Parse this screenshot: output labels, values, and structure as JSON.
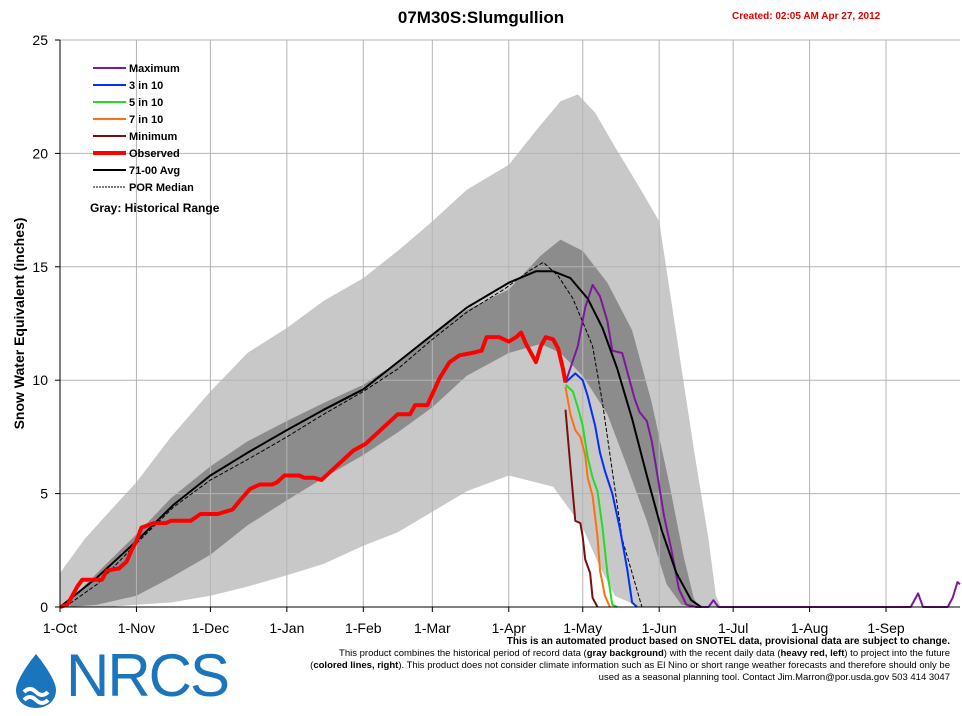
{
  "header": {
    "title": "07M30S:Slumgullion",
    "created": "Created: 02:05 AM Apr 27, 2012"
  },
  "disclaimer": {
    "heading": "This is an automated product based on SNOTEL data, provisional data are subject to change.",
    "body_1": "This product combines the historical period of record data (",
    "body_2": "gray background",
    "body_3": ") with the recent daily data (",
    "body_4": "heavy red, left",
    "body_5": ") to project into the future (",
    "body_6": "colored lines, right",
    "body_7": "). This product does not consider climate information such as El Nino or short range weather forecasts and therefore should only be used as a seasonal planning tool. Contact Jim.Marron@por.usda.gov 503 414 3047"
  },
  "logo": {
    "text": "NRCS"
  },
  "chart_data": {
    "type": "line",
    "title": "07M30S:Slumgullion",
    "ylabel": "Snow Water Equivalent (inches)",
    "xlabel": "",
    "ylim": [
      0,
      25
    ],
    "yticks": [
      0,
      5,
      10,
      15,
      20,
      25
    ],
    "x_unit": "days since 1-Oct",
    "xlim": [
      0,
      365
    ],
    "xticks": [
      {
        "label": "1-Oct",
        "day": 0
      },
      {
        "label": "1-Nov",
        "day": 31
      },
      {
        "label": "1-Dec",
        "day": 61
      },
      {
        "label": "1-Jan",
        "day": 92
      },
      {
        "label": "1-Feb",
        "day": 123
      },
      {
        "label": "1-Mar",
        "day": 151
      },
      {
        "label": "1-Apr",
        "day": 182
      },
      {
        "label": "1-May",
        "day": 212
      },
      {
        "label": "1-Jun",
        "day": 243
      },
      {
        "label": "1-Jul",
        "day": 273
      },
      {
        "label": "1-Aug",
        "day": 304
      },
      {
        "label": "1-Sep",
        "day": 335
      }
    ],
    "grid": true,
    "legend_position": "top-left",
    "legend": [
      {
        "name": "Maximum",
        "color": "#7a1a9a",
        "style": "solid",
        "width": 2
      },
      {
        "name": "3 in 10",
        "color": "#0030ff",
        "style": "solid",
        "width": 2
      },
      {
        "name": "5 in 10",
        "color": "#22dd22",
        "style": "solid",
        "width": 2
      },
      {
        "name": "7 in 10",
        "color": "#ff7010",
        "style": "solid",
        "width": 2
      },
      {
        "name": "Minimum",
        "color": "#7a1010",
        "style": "solid",
        "width": 2
      },
      {
        "name": "Observed",
        "color": "#ff0000",
        "style": "solid",
        "width": 4
      },
      {
        "name": "71-00 Avg",
        "color": "#000000",
        "style": "solid",
        "width": 2
      },
      {
        "name": "POR Median",
        "color": "#000000",
        "style": "dashed",
        "width": 1
      }
    ],
    "legend_note": "Gray: Historical Range",
    "bands": {
      "outer": {
        "color": "#c8c8c8",
        "upper": [
          [
            0,
            1.5
          ],
          [
            10,
            3
          ],
          [
            20,
            4.2
          ],
          [
            31,
            5.5
          ],
          [
            45,
            7.5
          ],
          [
            61,
            9.5
          ],
          [
            76,
            11.2
          ],
          [
            92,
            12.3
          ],
          [
            107,
            13.5
          ],
          [
            123,
            14.5
          ],
          [
            137,
            15.7
          ],
          [
            151,
            17
          ],
          [
            165,
            18.4
          ],
          [
            182,
            19.5
          ],
          [
            193,
            21
          ],
          [
            203,
            22.3
          ],
          [
            210,
            22.6
          ],
          [
            217,
            21.8
          ],
          [
            225,
            20.3
          ],
          [
            235,
            18.5
          ],
          [
            243,
            17
          ],
          [
            250,
            12
          ],
          [
            257,
            7
          ],
          [
            263,
            3
          ],
          [
            266,
            0.5
          ],
          [
            268,
            0
          ]
        ],
        "lower": [
          [
            268,
            0
          ],
          [
            255,
            0
          ],
          [
            245,
            0
          ],
          [
            235,
            0
          ],
          [
            225,
            0.5
          ],
          [
            218,
            2
          ],
          [
            212,
            3.5
          ],
          [
            200,
            5.3
          ],
          [
            182,
            5.8
          ],
          [
            165,
            5.1
          ],
          [
            151,
            4.2
          ],
          [
            137,
            3.3
          ],
          [
            123,
            2.7
          ],
          [
            107,
            1.9
          ],
          [
            92,
            1.4
          ],
          [
            76,
            0.9
          ],
          [
            61,
            0.5
          ],
          [
            45,
            0.2
          ],
          [
            31,
            0.1
          ],
          [
            20,
            0
          ],
          [
            0,
            0
          ]
        ]
      },
      "inner": {
        "color": "#8c8c8c",
        "upper": [
          [
            4,
            0.3
          ],
          [
            15,
            1.5
          ],
          [
            31,
            3.2
          ],
          [
            45,
            4.8
          ],
          [
            61,
            6.2
          ],
          [
            76,
            7.3
          ],
          [
            92,
            8.2
          ],
          [
            107,
            9
          ],
          [
            123,
            9.8
          ],
          [
            137,
            10.8
          ],
          [
            151,
            12
          ],
          [
            165,
            13.1
          ],
          [
            182,
            14
          ],
          [
            195,
            15.5
          ],
          [
            203,
            16.2
          ],
          [
            212,
            15.7
          ],
          [
            222,
            14.3
          ],
          [
            232,
            12.2
          ],
          [
            240,
            9
          ],
          [
            247,
            5.5
          ],
          [
            253,
            2.2
          ],
          [
            257,
            0.4
          ],
          [
            259,
            0
          ]
        ],
        "lower": [
          [
            259,
            0
          ],
          [
            252,
            0.1
          ],
          [
            246,
            1
          ],
          [
            238,
            3.8
          ],
          [
            230,
            6.2
          ],
          [
            222,
            8.5
          ],
          [
            212,
            10.2
          ],
          [
            203,
            11.2
          ],
          [
            195,
            11.6
          ],
          [
            182,
            11.2
          ],
          [
            165,
            10.2
          ],
          [
            151,
            8.8
          ],
          [
            137,
            7.7
          ],
          [
            123,
            6.7
          ],
          [
            107,
            5.7
          ],
          [
            92,
            4.7
          ],
          [
            76,
            3.6
          ],
          [
            61,
            2.3
          ],
          [
            45,
            1.3
          ],
          [
            31,
            0.5
          ],
          [
            15,
            0.1
          ],
          [
            4,
            0
          ]
        ]
      }
    },
    "series": [
      {
        "name": "Observed",
        "color": "#ff0000",
        "width": 4,
        "dash": "",
        "points": [
          [
            0,
            0
          ],
          [
            3,
            0.1
          ],
          [
            7,
            0.9
          ],
          [
            9,
            1.2
          ],
          [
            17,
            1.2
          ],
          [
            19,
            1.6
          ],
          [
            24,
            1.7
          ],
          [
            27,
            2
          ],
          [
            29,
            2.5
          ],
          [
            31,
            2.9
          ],
          [
            33,
            3.5
          ],
          [
            38,
            3.7
          ],
          [
            43,
            3.7
          ],
          [
            45,
            3.8
          ],
          [
            53,
            3.8
          ],
          [
            57,
            4.1
          ],
          [
            64,
            4.1
          ],
          [
            70,
            4.3
          ],
          [
            73,
            4.7
          ],
          [
            77,
            5.2
          ],
          [
            81,
            5.4
          ],
          [
            86,
            5.4
          ],
          [
            88,
            5.5
          ],
          [
            91,
            5.8
          ],
          [
            97,
            5.8
          ],
          [
            99,
            5.7
          ],
          [
            103,
            5.7
          ],
          [
            106,
            5.6
          ],
          [
            109,
            5.9
          ],
          [
            114,
            6.4
          ],
          [
            119,
            6.9
          ],
          [
            124,
            7.2
          ],
          [
            128,
            7.6
          ],
          [
            133,
            8.1
          ],
          [
            137,
            8.5
          ],
          [
            142,
            8.5
          ],
          [
            144,
            8.9
          ],
          [
            149,
            8.9
          ],
          [
            154,
            10.1
          ],
          [
            158,
            10.8
          ],
          [
            162,
            11.1
          ],
          [
            167,
            11.2
          ],
          [
            171,
            11.3
          ],
          [
            173,
            11.9
          ],
          [
            178,
            11.9
          ],
          [
            182,
            11.7
          ],
          [
            185,
            11.9
          ],
          [
            187,
            12.1
          ],
          [
            189,
            11.6
          ],
          [
            191,
            11.2
          ],
          [
            193,
            10.8
          ],
          [
            195,
            11.5
          ],
          [
            197,
            11.9
          ],
          [
            200,
            11.8
          ],
          [
            202,
            11.4
          ],
          [
            204,
            10.5
          ],
          [
            205,
            9.9
          ]
        ]
      },
      {
        "name": "71-00 Avg",
        "color": "#000000",
        "width": 2,
        "dash": "",
        "points": [
          [
            0,
            0
          ],
          [
            15,
            1.3
          ],
          [
            31,
            2.9
          ],
          [
            46,
            4.5
          ],
          [
            61,
            5.8
          ],
          [
            76,
            6.8
          ],
          [
            92,
            7.8
          ],
          [
            107,
            8.7
          ],
          [
            123,
            9.6
          ],
          [
            137,
            10.8
          ],
          [
            151,
            12
          ],
          [
            165,
            13.2
          ],
          [
            182,
            14.3
          ],
          [
            193,
            14.8
          ],
          [
            200,
            14.8
          ],
          [
            207,
            14.5
          ],
          [
            214,
            13.6
          ],
          [
            220,
            12.3
          ],
          [
            226,
            10.5
          ],
          [
            232,
            8.3
          ],
          [
            238,
            5.8
          ],
          [
            244,
            3.4
          ],
          [
            250,
            1.5
          ],
          [
            256,
            0.3
          ],
          [
            260,
            0
          ]
        ]
      },
      {
        "name": "POR Median",
        "color": "#000000",
        "width": 1,
        "dash": "4,2",
        "points": [
          [
            2,
            0
          ],
          [
            15,
            1
          ],
          [
            31,
            2.8
          ],
          [
            46,
            4.4
          ],
          [
            61,
            5.6
          ],
          [
            76,
            6.5
          ],
          [
            92,
            7.5
          ],
          [
            107,
            8.5
          ],
          [
            123,
            9.5
          ],
          [
            137,
            10.5
          ],
          [
            151,
            11.8
          ],
          [
            165,
            13
          ],
          [
            180,
            14
          ],
          [
            190,
            14.8
          ],
          [
            196,
            15.2
          ],
          [
            202,
            14.6
          ],
          [
            208,
            13.6
          ],
          [
            213,
            12.3
          ],
          [
            216,
            11.5
          ],
          [
            220,
            9
          ],
          [
            224,
            6
          ],
          [
            228,
            3
          ],
          [
            232,
            1.5
          ],
          [
            236,
            0
          ]
        ]
      },
      {
        "name": "Maximum",
        "color": "#7a1a9a",
        "width": 2,
        "dash": "",
        "points": [
          [
            205,
            9.9
          ],
          [
            210,
            11.5
          ],
          [
            213,
            13.2
          ],
          [
            216,
            14.2
          ],
          [
            219,
            13.7
          ],
          [
            222,
            12.6
          ],
          [
            224,
            11.3
          ],
          [
            228,
            11.2
          ],
          [
            231,
            10
          ],
          [
            233,
            9.2
          ],
          [
            235,
            8.6
          ],
          [
            238,
            8.2
          ],
          [
            240,
            7.3
          ],
          [
            242,
            6
          ],
          [
            245,
            4
          ],
          [
            248,
            2.5
          ],
          [
            251,
            0.8
          ],
          [
            254,
            0.1
          ],
          [
            258,
            0
          ],
          [
            263,
            0
          ],
          [
            265,
            0.3
          ],
          [
            267,
            0
          ],
          [
            345,
            0
          ],
          [
            348,
            0.6
          ],
          [
            350,
            0
          ],
          [
            360,
            0
          ],
          [
            362,
            0.4
          ],
          [
            364,
            1.1
          ],
          [
            365,
            1
          ]
        ]
      },
      {
        "name": "3 in 10",
        "color": "#0030ff",
        "width": 2,
        "dash": "",
        "points": [
          [
            205,
            9.9
          ],
          [
            209,
            10.3
          ],
          [
            212,
            10
          ],
          [
            214,
            9.3
          ],
          [
            217,
            8
          ],
          [
            219,
            6.8
          ],
          [
            221,
            6
          ],
          [
            224,
            5
          ],
          [
            227,
            3.5
          ],
          [
            230,
            1.7
          ],
          [
            232,
            0.2
          ],
          [
            234,
            0
          ]
        ]
      },
      {
        "name": "5 in 10",
        "color": "#22dd22",
        "width": 2,
        "dash": "",
        "points": [
          [
            205,
            9.8
          ],
          [
            208,
            9.5
          ],
          [
            210,
            8.8
          ],
          [
            212,
            8
          ],
          [
            214,
            6.6
          ],
          [
            216,
            5.7
          ],
          [
            218,
            5.1
          ],
          [
            220,
            3.5
          ],
          [
            222,
            1.5
          ],
          [
            224,
            0.1
          ],
          [
            226,
            0
          ]
        ]
      },
      {
        "name": "7 in 10",
        "color": "#ff7010",
        "width": 2,
        "dash": "",
        "points": [
          [
            205,
            9.7
          ],
          [
            207,
            8.5
          ],
          [
            209,
            7.8
          ],
          [
            211,
            7.5
          ],
          [
            213,
            6.7
          ],
          [
            214,
            5.7
          ],
          [
            216,
            4.9
          ],
          [
            218,
            3.1
          ],
          [
            219,
            1.6
          ],
          [
            221,
            0.5
          ],
          [
            223,
            0
          ]
        ]
      },
      {
        "name": "Minimum",
        "color": "#7a1010",
        "width": 2,
        "dash": "",
        "points": [
          [
            205,
            8.7
          ],
          [
            207,
            6.2
          ],
          [
            209,
            3.8
          ],
          [
            211,
            3.7
          ],
          [
            212,
            3.1
          ],
          [
            213,
            2.1
          ],
          [
            215,
            1.5
          ],
          [
            216,
            0.4
          ],
          [
            218,
            0
          ]
        ]
      }
    ]
  }
}
